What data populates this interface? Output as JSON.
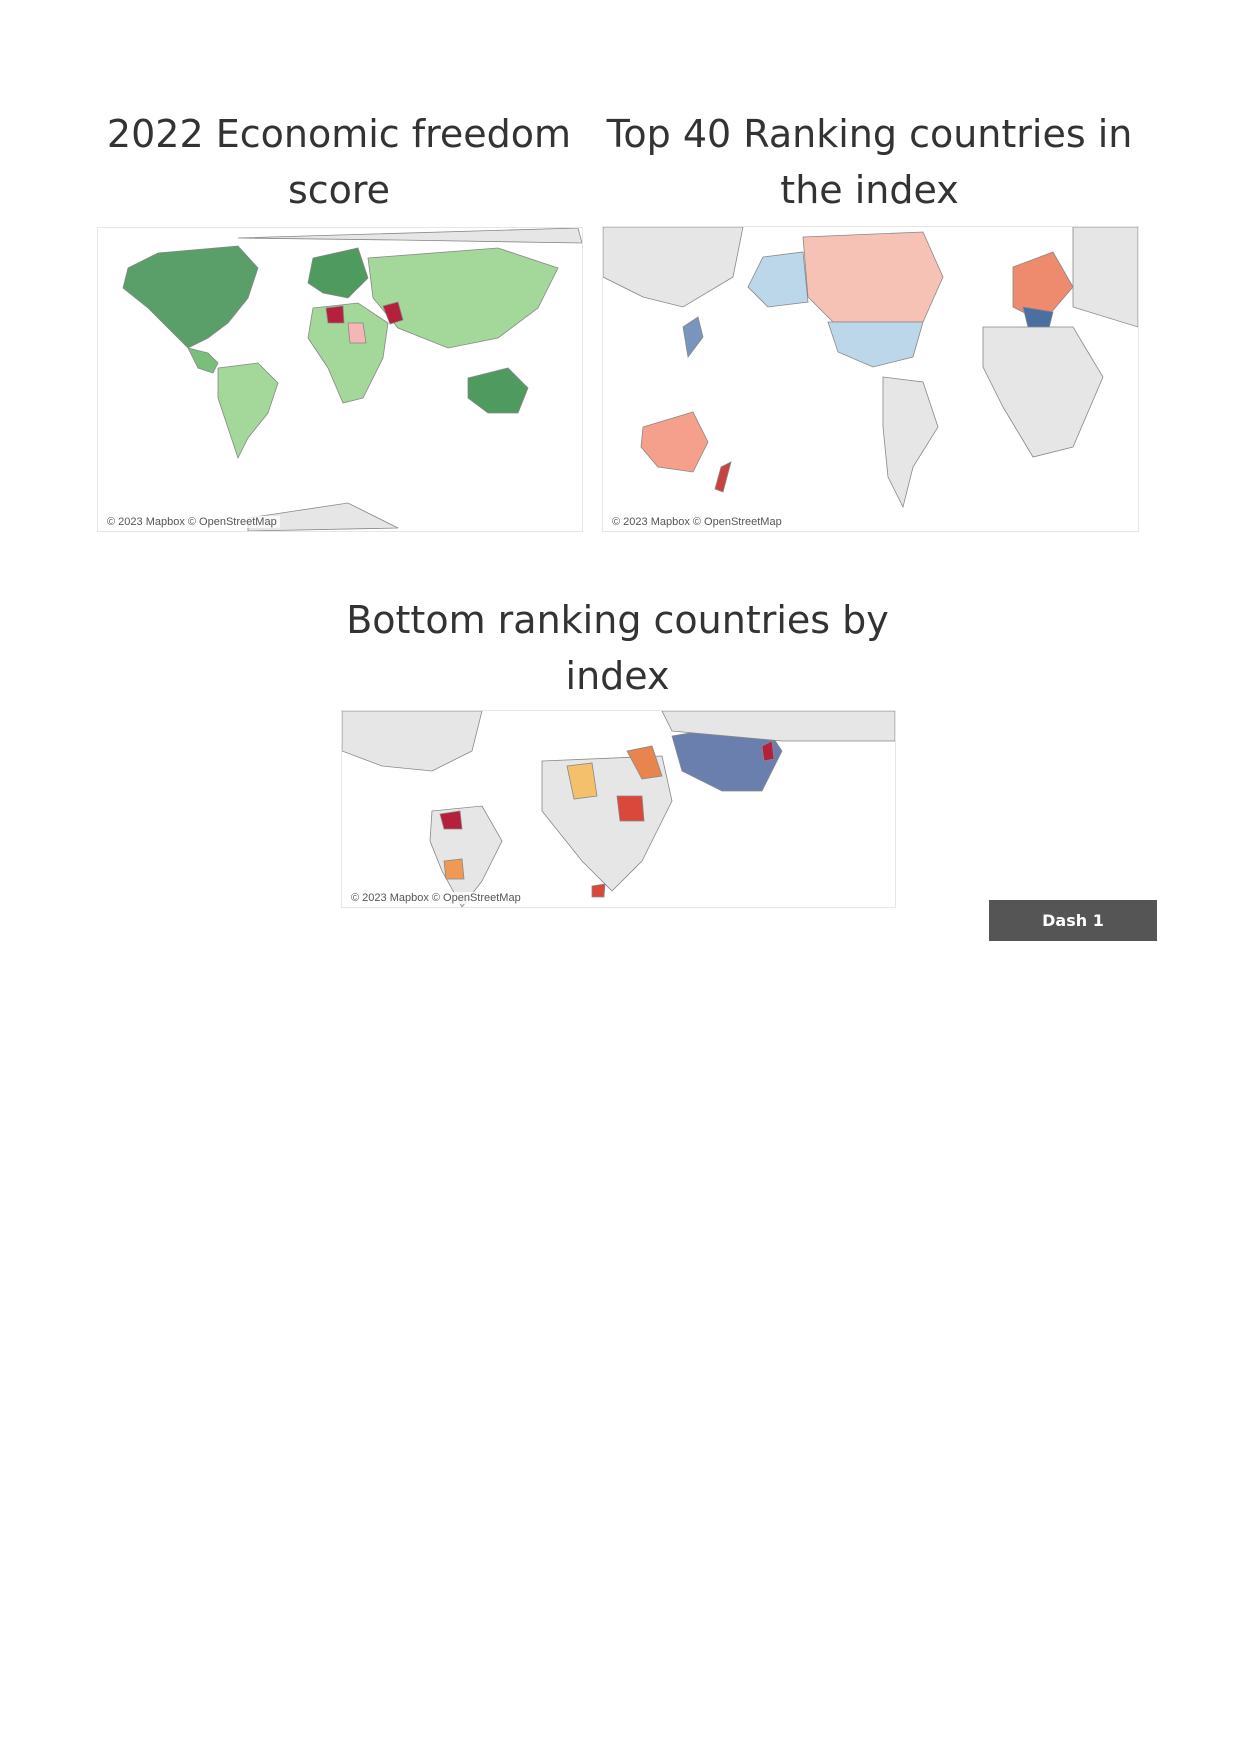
{
  "dashboards": [
    {
      "title": "2022 Economic freedom score",
      "attribution": "© 2023 Mapbox © OpenStreetMap"
    },
    {
      "title": "Top 40 Ranking countries in the index",
      "attribution": "© 2023 Mapbox © OpenStreetMap"
    },
    {
      "title": "Bottom ranking countries by index",
      "attribution": "© 2023 Mapbox © OpenStreetMap"
    }
  ],
  "button": {
    "label": "Dash 1"
  }
}
